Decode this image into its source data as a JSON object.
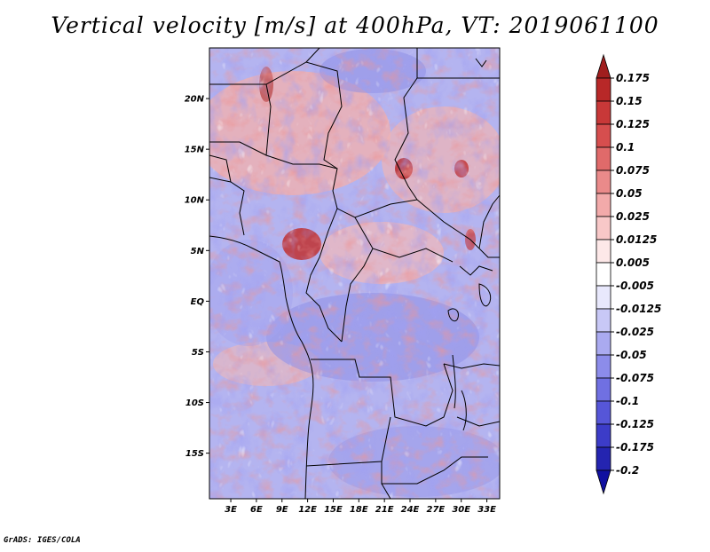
{
  "title": "Vertical velocity [m/s] at 400hPa, VT: 2019061100",
  "credit": "GrADS: IGES/COLA",
  "map": {
    "lat_labels": [
      "20N",
      "15N",
      "10N",
      "5N",
      "EQ",
      "5S",
      "10S",
      "15S"
    ],
    "lat_values": [
      20,
      15,
      10,
      5,
      0,
      -5,
      -10,
      -15
    ],
    "lon_labels": [
      "3E",
      "6E",
      "9E",
      "12E",
      "15E",
      "18E",
      "21E",
      "24E",
      "27E",
      "30E",
      "33E"
    ],
    "lon_values": [
      3,
      6,
      9,
      12,
      15,
      18,
      21,
      24,
      27,
      30,
      33
    ],
    "lon_range": [
      0.5,
      34.5
    ],
    "lat_range": [
      -19.5,
      25
    ]
  },
  "colorbar": {
    "labels": [
      "0.175",
      "0.15",
      "0.125",
      "0.1",
      "0.075",
      "0.05",
      "0.025",
      "0.0125",
      "0.005",
      "-0.005",
      "-0.0125",
      "-0.025",
      "-0.05",
      "-0.075",
      "-0.1",
      "-0.125",
      "-0.175",
      "-0.2"
    ],
    "colors": [
      "#a01e1e",
      "#b82828",
      "#c83838",
      "#d64e4e",
      "#e06a6a",
      "#ea8a8a",
      "#f2aaaa",
      "#f8c8c8",
      "#fde8e8",
      "#ffffff",
      "#e8e8fc",
      "#c8c8f6",
      "#aaaaf0",
      "#8c8cea",
      "#7070e2",
      "#5656d8",
      "#3c3cc8",
      "#2424b0",
      "#1010a0"
    ]
  }
}
